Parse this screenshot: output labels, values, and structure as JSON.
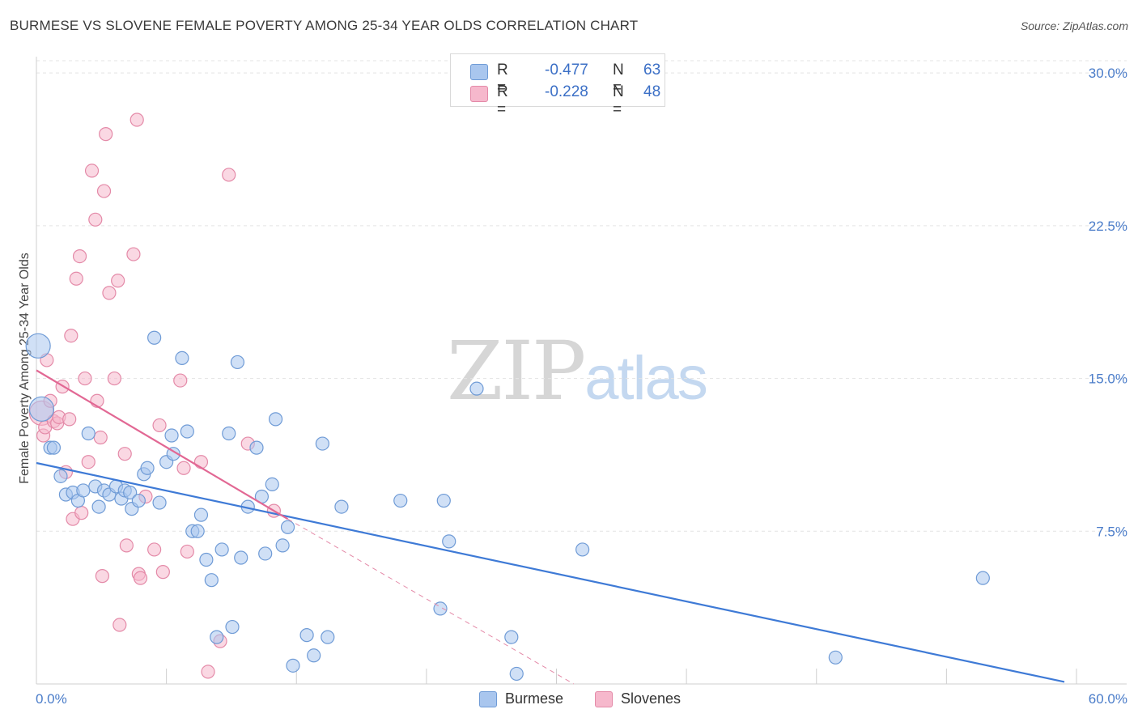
{
  "title": "BURMESE VS SLOVENE FEMALE POVERTY AMONG 25-34 YEAR OLDS CORRELATION CHART",
  "source": "Source: ZipAtlas.com",
  "watermark": {
    "zip": "ZIP",
    "atlas": "atlas"
  },
  "legend": {
    "rows": [
      {
        "r_label": "R =",
        "r_value": "-0.477",
        "n_label": "N =",
        "n_value": "63"
      },
      {
        "r_label": "R =",
        "r_value": "-0.228",
        "n_label": "N =",
        "n_value": "48"
      }
    ]
  },
  "bottom_legend": {
    "burmese": "Burmese",
    "slovenes": "Slovenes"
  },
  "colors": {
    "burmese_fill": "#a9c6ee",
    "burmese_stroke": "#6f9bd6",
    "burmese_line": "#3e7ad6",
    "slovenes_fill": "#f6b8cc",
    "slovenes_stroke": "#e48aa8",
    "slovenes_line": "#e26894",
    "tick_text": "#4a7cc9",
    "grid": "#e3e3e3"
  },
  "chart_data": {
    "type": "scatter",
    "title": "BURMESE VS SLOVENE FEMALE POVERTY AMONG 25-34 YEAR OLDS CORRELATION CHART",
    "xlabel": "",
    "ylabel": "Female Poverty Among 25-34 Year Olds",
    "xlim": [
      0,
      60
    ],
    "ylim": [
      0,
      30.8
    ],
    "x_tick_labels": [
      "0.0%",
      "60.0%"
    ],
    "y_ticks": [
      7.5,
      15.0,
      22.5,
      30.0
    ],
    "y_tick_labels": [
      "7.5%",
      "15.0%",
      "22.5%",
      "30.0%"
    ],
    "grid": true,
    "series": [
      {
        "name": "Burmese",
        "r": -0.477,
        "n": 63,
        "trend": {
          "x": [
            0,
            59.3
          ],
          "y": [
            10.85,
            0.1
          ]
        },
        "points": [
          {
            "x": 0.1,
            "y": 16.6,
            "big": true
          },
          {
            "x": 0.3,
            "y": 13.5,
            "big": true
          },
          {
            "x": 0.8,
            "y": 11.6
          },
          {
            "x": 1.0,
            "y": 11.6
          },
          {
            "x": 1.4,
            "y": 10.2
          },
          {
            "x": 1.7,
            "y": 9.3
          },
          {
            "x": 2.1,
            "y": 9.4
          },
          {
            "x": 2.4,
            "y": 9.0
          },
          {
            "x": 2.7,
            "y": 9.5
          },
          {
            "x": 3.0,
            "y": 12.3
          },
          {
            "x": 3.4,
            "y": 9.7
          },
          {
            "x": 3.6,
            "y": 8.7
          },
          {
            "x": 3.9,
            "y": 9.5
          },
          {
            "x": 4.2,
            "y": 9.3
          },
          {
            "x": 4.6,
            "y": 9.7
          },
          {
            "x": 4.9,
            "y": 9.1
          },
          {
            "x": 5.1,
            "y": 9.5
          },
          {
            "x": 5.4,
            "y": 9.4
          },
          {
            "x": 5.5,
            "y": 8.6
          },
          {
            "x": 5.9,
            "y": 9.0
          },
          {
            "x": 6.2,
            "y": 10.3
          },
          {
            "x": 6.4,
            "y": 10.6
          },
          {
            "x": 6.8,
            "y": 17.0
          },
          {
            "x": 7.1,
            "y": 8.9
          },
          {
            "x": 7.5,
            "y": 10.9
          },
          {
            "x": 7.8,
            "y": 12.2
          },
          {
            "x": 7.9,
            "y": 11.3
          },
          {
            "x": 8.4,
            "y": 16.0
          },
          {
            "x": 8.7,
            "y": 12.4
          },
          {
            "x": 9.0,
            "y": 7.5
          },
          {
            "x": 9.3,
            "y": 7.5
          },
          {
            "x": 9.5,
            "y": 8.3
          },
          {
            "x": 9.8,
            "y": 6.1
          },
          {
            "x": 10.1,
            "y": 5.1
          },
          {
            "x": 10.4,
            "y": 2.3
          },
          {
            "x": 10.7,
            "y": 6.6
          },
          {
            "x": 11.1,
            "y": 12.3
          },
          {
            "x": 11.3,
            "y": 2.8
          },
          {
            "x": 11.6,
            "y": 15.8
          },
          {
            "x": 11.8,
            "y": 6.2
          },
          {
            "x": 12.2,
            "y": 8.7
          },
          {
            "x": 12.7,
            "y": 11.6
          },
          {
            "x": 13.0,
            "y": 9.2
          },
          {
            "x": 13.2,
            "y": 6.4
          },
          {
            "x": 13.6,
            "y": 9.8
          },
          {
            "x": 13.8,
            "y": 13.0
          },
          {
            "x": 14.2,
            "y": 6.8
          },
          {
            "x": 14.5,
            "y": 7.7
          },
          {
            "x": 14.8,
            "y": 0.9
          },
          {
            "x": 15.6,
            "y": 2.4
          },
          {
            "x": 16.0,
            "y": 1.4
          },
          {
            "x": 16.5,
            "y": 11.8
          },
          {
            "x": 16.8,
            "y": 2.3
          },
          {
            "x": 17.6,
            "y": 8.7
          },
          {
            "x": 21.0,
            "y": 9.0
          },
          {
            "x": 23.3,
            "y": 3.7
          },
          {
            "x": 23.5,
            "y": 9.0
          },
          {
            "x": 23.8,
            "y": 7.0
          },
          {
            "x": 25.4,
            "y": 14.5
          },
          {
            "x": 27.4,
            "y": 2.3
          },
          {
            "x": 27.7,
            "y": 0.5
          },
          {
            "x": 31.5,
            "y": 6.6
          },
          {
            "x": 46.1,
            "y": 1.3
          },
          {
            "x": 54.6,
            "y": 5.2
          }
        ]
      },
      {
        "name": "Slovenes",
        "r": -0.228,
        "n": 48,
        "trend": {
          "x": [
            0,
            14.5
          ],
          "y": [
            15.4,
            8.1
          ]
        },
        "trend_ext": {
          "x": [
            14.5,
            31
          ],
          "y": [
            8.1,
            0
          ]
        },
        "points": [
          {
            "x": 0.3,
            "y": 13.3,
            "big": true
          },
          {
            "x": 0.4,
            "y": 12.2
          },
          {
            "x": 0.5,
            "y": 12.6
          },
          {
            "x": 0.6,
            "y": 15.9
          },
          {
            "x": 0.8,
            "y": 13.9
          },
          {
            "x": 1.0,
            "y": 12.9
          },
          {
            "x": 1.2,
            "y": 12.8
          },
          {
            "x": 1.3,
            "y": 13.1
          },
          {
            "x": 1.5,
            "y": 14.6
          },
          {
            "x": 1.7,
            "y": 10.4
          },
          {
            "x": 1.9,
            "y": 13.0
          },
          {
            "x": 2.0,
            "y": 17.1
          },
          {
            "x": 2.1,
            "y": 8.1
          },
          {
            "x": 2.3,
            "y": 19.9
          },
          {
            "x": 2.5,
            "y": 21.0
          },
          {
            "x": 2.6,
            "y": 8.4
          },
          {
            "x": 2.8,
            "y": 15.0
          },
          {
            "x": 3.0,
            "y": 10.9
          },
          {
            "x": 3.2,
            "y": 25.2
          },
          {
            "x": 3.4,
            "y": 22.8
          },
          {
            "x": 3.5,
            "y": 13.9
          },
          {
            "x": 3.7,
            "y": 12.1
          },
          {
            "x": 3.8,
            "y": 5.3
          },
          {
            "x": 3.9,
            "y": 24.2
          },
          {
            "x": 4.0,
            "y": 27.0
          },
          {
            "x": 4.2,
            "y": 19.2
          },
          {
            "x": 4.5,
            "y": 15.0
          },
          {
            "x": 4.7,
            "y": 19.8
          },
          {
            "x": 4.8,
            "y": 2.9
          },
          {
            "x": 5.1,
            "y": 11.3
          },
          {
            "x": 5.2,
            "y": 6.8
          },
          {
            "x": 5.6,
            "y": 21.1
          },
          {
            "x": 5.8,
            "y": 27.7
          },
          {
            "x": 5.9,
            "y": 5.4
          },
          {
            "x": 6.0,
            "y": 5.2
          },
          {
            "x": 6.3,
            "y": 9.2
          },
          {
            "x": 6.8,
            "y": 6.6
          },
          {
            "x": 7.1,
            "y": 12.7
          },
          {
            "x": 7.3,
            "y": 5.5
          },
          {
            "x": 8.3,
            "y": 14.9
          },
          {
            "x": 8.5,
            "y": 10.6
          },
          {
            "x": 8.7,
            "y": 6.5
          },
          {
            "x": 9.5,
            "y": 10.9
          },
          {
            "x": 9.9,
            "y": 0.6
          },
          {
            "x": 10.6,
            "y": 2.1
          },
          {
            "x": 11.1,
            "y": 25.0
          },
          {
            "x": 12.2,
            "y": 11.8
          },
          {
            "x": 13.7,
            "y": 8.5
          }
        ]
      }
    ]
  }
}
